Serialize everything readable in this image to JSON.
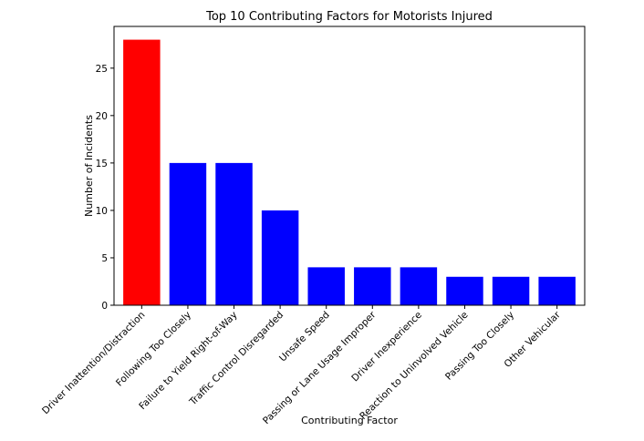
{
  "chart_data": {
    "type": "bar",
    "title": "Top 10 Contributing Factors for Motorists Injured",
    "xlabel": "Contributing Factor",
    "ylabel": "Number of Incidents",
    "ylim": [
      0,
      29.4
    ],
    "yticks": [
      0,
      5,
      10,
      15,
      20,
      25
    ],
    "grid": false,
    "categories": [
      "Driver Inattention/Distraction",
      "Following Too Closely",
      "Failure to Yield Right-of-Way",
      "Traffic Control Disregarded",
      "Unsafe Speed",
      "Passing or Lane Usage Improper",
      "Driver Inexperience",
      "Reaction to Uninvolved Vehicle",
      "Passing Too Closely",
      "Other Vehicular"
    ],
    "values": [
      28,
      15,
      15,
      10,
      4,
      4,
      4,
      3,
      3,
      3
    ],
    "colors": [
      "#ff0000",
      "#0000ff",
      "#0000ff",
      "#0000ff",
      "#0000ff",
      "#0000ff",
      "#0000ff",
      "#0000ff",
      "#0000ff",
      "#0000ff"
    ]
  }
}
